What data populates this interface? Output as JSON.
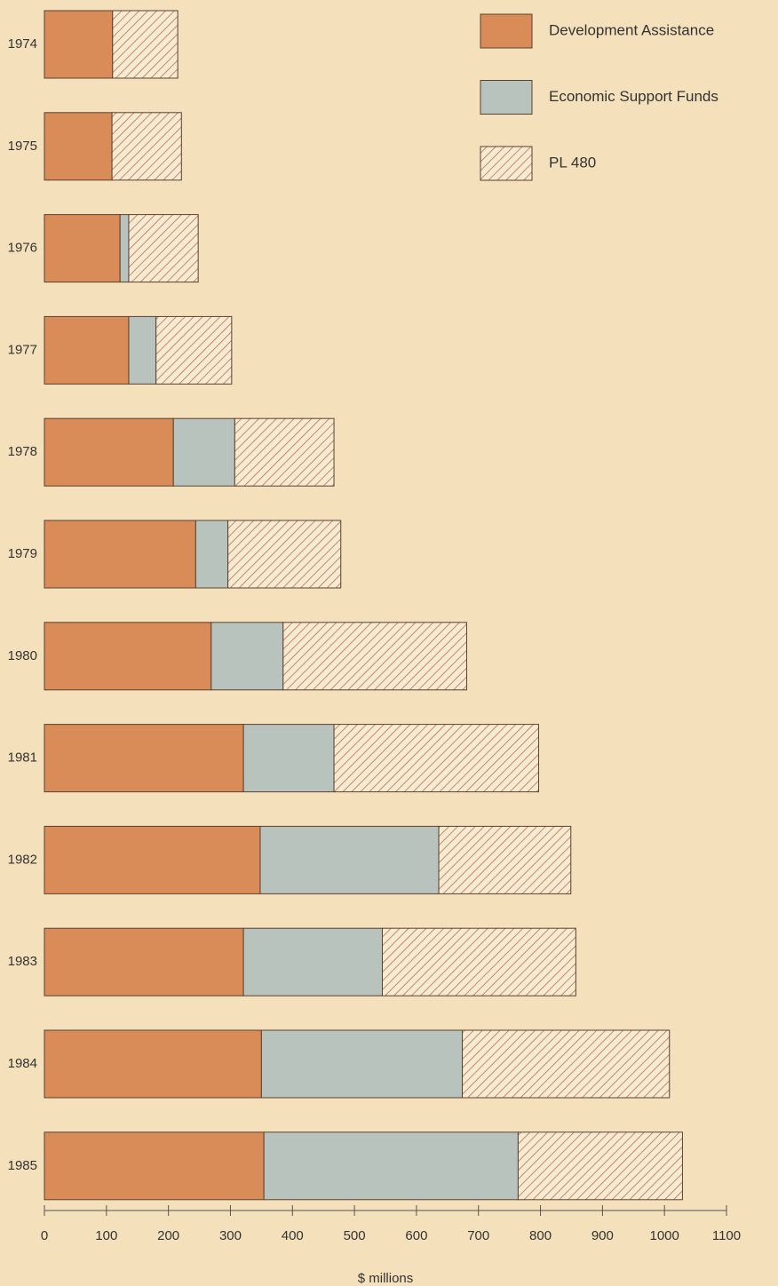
{
  "chart_data": {
    "type": "stacked-barh",
    "xlabel": "$ millions",
    "categories": [
      "1974",
      "1975",
      "1976",
      "1977",
      "1978",
      "1979",
      "1980",
      "1981",
      "1982",
      "1983",
      "1984",
      "1985"
    ],
    "series": [
      {
        "name": "Development Assistance",
        "color": "#d98b58",
        "values": [
          110,
          109,
          122,
          136,
          208,
          244,
          269,
          321,
          348,
          321,
          350,
          354
        ]
      },
      {
        "name": "Economic Support Funds",
        "color": "#b9c3bd",
        "values": [
          0,
          0,
          14,
          44,
          99,
          52,
          116,
          146,
          288,
          224,
          324,
          410
        ]
      },
      {
        "name": "PL 480",
        "color": "#b8714a",
        "values": [
          105,
          112,
          112,
          122,
          160,
          182,
          296,
          330,
          213,
          312,
          334,
          265
        ]
      }
    ],
    "xlim": [
      0,
      1100
    ],
    "xticks": [
      0,
      100,
      200,
      300,
      400,
      500,
      600,
      700,
      800,
      900,
      1000,
      1100
    ],
    "legend": "upper right"
  }
}
